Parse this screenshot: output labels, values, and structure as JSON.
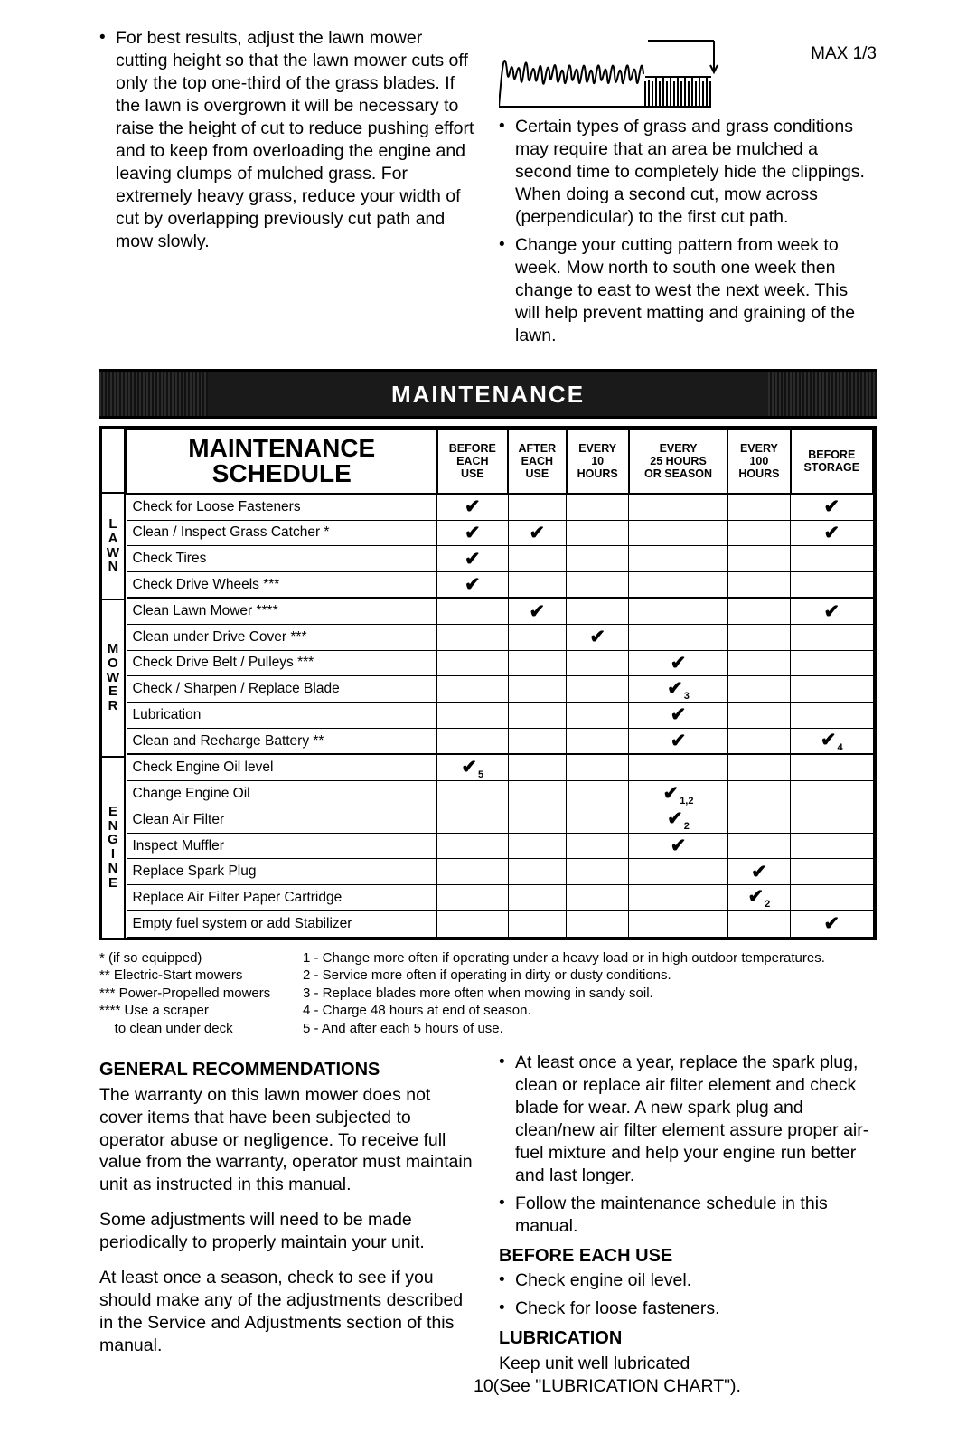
{
  "top": {
    "left_bullet": "For best results, adjust the lawn mower cutting height so that the lawn mower cuts off only the top one-third of the grass blades. If the lawn is overgrown it will be necessary to raise the height of cut to reduce pushing effort and to keep from overloading the engine and leaving clumps of mulched grass. For extremely heavy grass, reduce your width of cut by overlapping previously cut path and mow slowly.",
    "grass_label": "MAX 1/3",
    "right_bullets": [
      "Certain types of grass and grass conditions may require that an area be mulched a second time to completely hide the clippings. When doing a second cut, mow across (perpendicular) to the first cut path.",
      "Change your cutting pattern from week to week. Mow north to south one week then change to east to west the next week. This will help prevent matting and graining of the lawn."
    ]
  },
  "banner": "MAINTENANCE",
  "schedule": {
    "title_line1": "MAINTENANCE",
    "title_line2": "SCHEDULE",
    "columns": [
      "BEFORE\nEACH\nUSE",
      "AFTER\nEACH\nUSE",
      "EVERY\n10\nHOURS",
      "EVERY\n25 HOURS\nOR SEASON",
      "EVERY\n100\nHOURS",
      "BEFORE\nSTORAGE"
    ],
    "sections": [
      {
        "label": "L\nA\nW\nN",
        "rows": 4
      },
      {
        "label": "M\nO\nW\nE\nR",
        "rows": 6
      },
      {
        "label": "E\nN\nG\nI\nN\nE",
        "rows": 7
      }
    ],
    "rows": [
      {
        "task": "Check for Loose Fasteners",
        "marks": [
          "✔",
          "",
          "",
          "",
          "",
          "✔"
        ],
        "sec_start": true
      },
      {
        "task": "Clean / Inspect Grass Catcher *",
        "marks": [
          "✔",
          "✔",
          "",
          "",
          "",
          "✔"
        ]
      },
      {
        "task": "Check Tires",
        "marks": [
          "✔",
          "",
          "",
          "",
          "",
          ""
        ]
      },
      {
        "task": "Check Drive Wheels ***",
        "marks": [
          "✔",
          "",
          "",
          "",
          "",
          ""
        ]
      },
      {
        "task": "Clean Lawn Mower ****",
        "marks": [
          "",
          "✔",
          "",
          "",
          "",
          "✔"
        ],
        "sec_start": true
      },
      {
        "task": "Clean under Drive Cover ***",
        "marks": [
          "",
          "",
          "✔",
          "",
          "",
          ""
        ]
      },
      {
        "task": "Check Drive Belt / Pulleys ***",
        "marks": [
          "",
          "",
          "",
          "✔",
          "",
          ""
        ]
      },
      {
        "task": "Check / Sharpen / Replace Blade",
        "marks": [
          "",
          "",
          "",
          "✔3",
          "",
          ""
        ]
      },
      {
        "task": "Lubrication",
        "marks": [
          "",
          "",
          "",
          "✔",
          "",
          ""
        ]
      },
      {
        "task": "Clean and Recharge Battery **",
        "marks": [
          "",
          "",
          "",
          "✔",
          "",
          "✔4"
        ]
      },
      {
        "task": "Check Engine Oil level",
        "marks": [
          "✔5",
          "",
          "",
          "",
          "",
          ""
        ],
        "sec_start": true
      },
      {
        "task": "Change Engine Oil",
        "marks": [
          "",
          "",
          "",
          "✔1,2",
          "",
          ""
        ]
      },
      {
        "task": "Clean Air Filter",
        "marks": [
          "",
          "",
          "",
          "✔2",
          "",
          ""
        ]
      },
      {
        "task": "Inspect Muffler",
        "marks": [
          "",
          "",
          "",
          "✔",
          "",
          ""
        ]
      },
      {
        "task": "Replace Spark Plug",
        "marks": [
          "",
          "",
          "",
          "",
          "✔",
          ""
        ]
      },
      {
        "task": "Replace Air Filter Paper Cartridge",
        "marks": [
          "",
          "",
          "",
          "",
          "✔2",
          ""
        ]
      },
      {
        "task": "Empty fuel system or add Stabilizer",
        "marks": [
          "",
          "",
          "",
          "",
          "",
          "✔"
        ]
      }
    ]
  },
  "footnotes": {
    "left": [
      "* (if so equipped)",
      "** Electric-Start mowers",
      "*** Power-Propelled mowers",
      "**** Use a scraper",
      "    to clean under deck"
    ],
    "right": [
      "1 - Change more often if operating under a heavy load or in high outdoor temperatures.",
      "2 - Service more often if operating in dirty or dusty conditions.",
      "3 - Replace blades more often when mowing in sandy soil.",
      "4 - Charge 48 hours at end of season.",
      "5 - And after each 5 hours of use."
    ]
  },
  "lower": {
    "left": {
      "heading": "GENERAL RECOMMENDATIONS",
      "p1": "The warranty on this lawn mower does not cover items that have been subjected to operator abuse or negligence. To receive full value from the warranty, operator must maintain unit as instructed in this manual.",
      "p2": "Some adjustments will need to be made periodically to properly maintain your unit.",
      "p3": "At least once a season, check to see if you should make any of the adjustments described in the Service and Adjustments section of this manual."
    },
    "right": {
      "bullets": [
        "At least once a year, replace the spark plug, clean or replace air filter element and check blade for wear. A new spark plug and clean/new air filter element assure proper air-fuel mixture and help your engine run better and last longer.",
        "Follow the maintenance schedule in this manual."
      ],
      "h2": "BEFORE EACH USE",
      "b2": [
        "Check engine oil level.",
        "Check for loose fasteners."
      ],
      "h3": "LUBRICATION",
      "p3a": "Keep unit well lubricated",
      "p3b": "10(See \"LUBRICATION CHART\")."
    }
  },
  "colors": {
    "check": "#000000",
    "banner_bg": "#1a1a1a"
  }
}
